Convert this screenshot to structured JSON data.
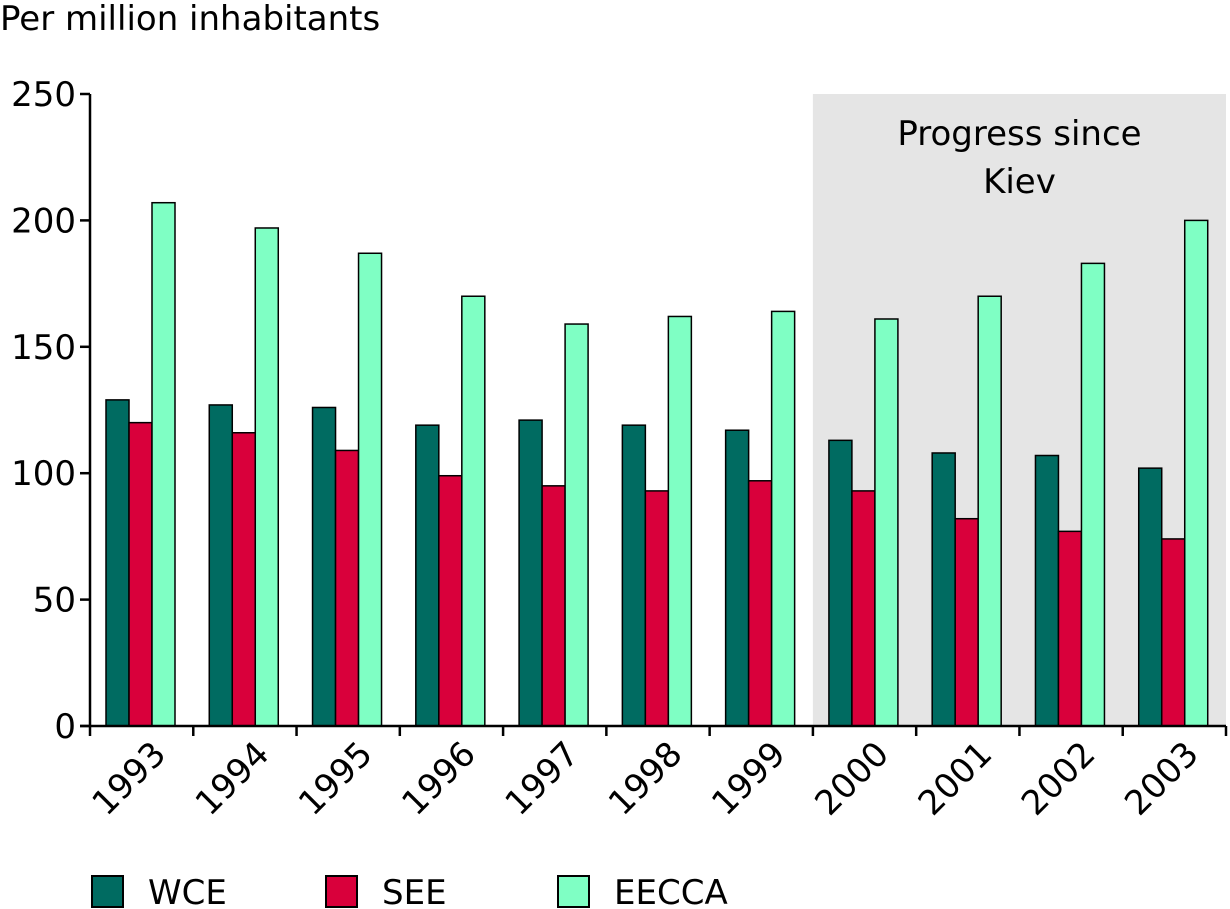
{
  "chart_data": {
    "type": "bar",
    "ylabel": "Per million inhabitants",
    "xlabel": "",
    "ylim": [
      0,
      250
    ],
    "yticks": [
      0,
      50,
      100,
      150,
      200,
      250
    ],
    "categories": [
      "1993",
      "1994",
      "1995",
      "1996",
      "1997",
      "1998",
      "1999",
      "2000",
      "2001",
      "2002",
      "2003"
    ],
    "series": [
      {
        "name": "WCE",
        "color": "#006b61",
        "values": [
          129,
          127,
          126,
          119,
          121,
          119,
          117,
          113,
          108,
          107,
          102
        ]
      },
      {
        "name": "SEE",
        "color": "#d9003b",
        "values": [
          120,
          116,
          109,
          99,
          95,
          93,
          97,
          93,
          82,
          77,
          74
        ]
      },
      {
        "name": "EECCA",
        "color": "#7fffc4",
        "values": [
          207,
          197,
          187,
          170,
          159,
          162,
          164,
          161,
          170,
          183,
          200
        ]
      }
    ],
    "highlight": {
      "from": "2000",
      "to": "2003",
      "label": [
        "Progress since",
        "Kiev"
      ],
      "color": "#e5e5e5"
    },
    "grid": false,
    "legend": "bottom-left"
  }
}
